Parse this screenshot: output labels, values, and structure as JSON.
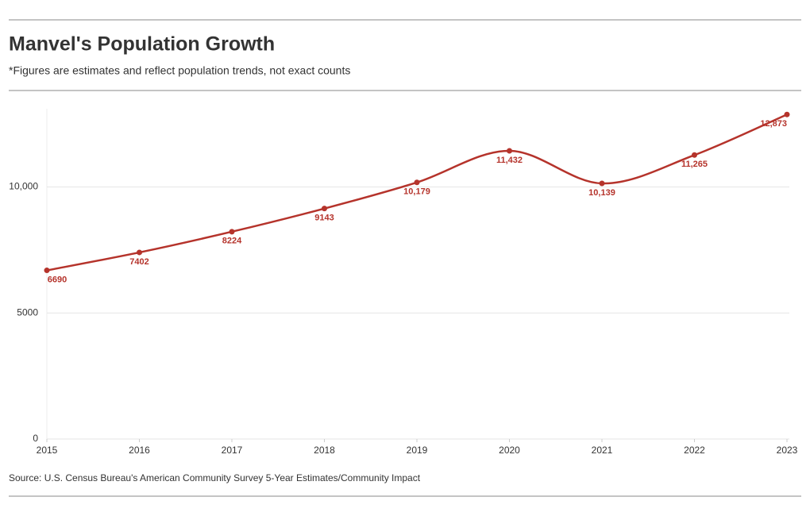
{
  "chart_data": {
    "type": "line",
    "title": "Manvel's Population Growth",
    "subtitle": "*Figures are estimates and reflect population trends, not exact counts",
    "source": "Source: U.S. Census Bureau's American Community Survey 5-Year Estimates/Community Impact",
    "x": [
      2015,
      2016,
      2017,
      2018,
      2019,
      2020,
      2021,
      2022,
      2023
    ],
    "xlim": [
      2015,
      2023
    ],
    "xticks": [
      2015,
      2016,
      2017,
      2018,
      2019,
      2020,
      2021,
      2022,
      2023
    ],
    "values": [
      6690,
      7402,
      8224,
      9143,
      10179,
      11432,
      10139,
      11265,
      12873
    ],
    "value_labels": [
      "6690",
      "7402",
      "8224",
      "9143",
      "10,179",
      "11,432",
      "10,139",
      "11,265",
      "12,873"
    ],
    "color": "#b5332b",
    "ylim": [
      0,
      13100
    ],
    "yticks": [
      0,
      5000,
      {
        "value": 10000,
        "label": "10,000"
      }
    ],
    "grid": true
  }
}
